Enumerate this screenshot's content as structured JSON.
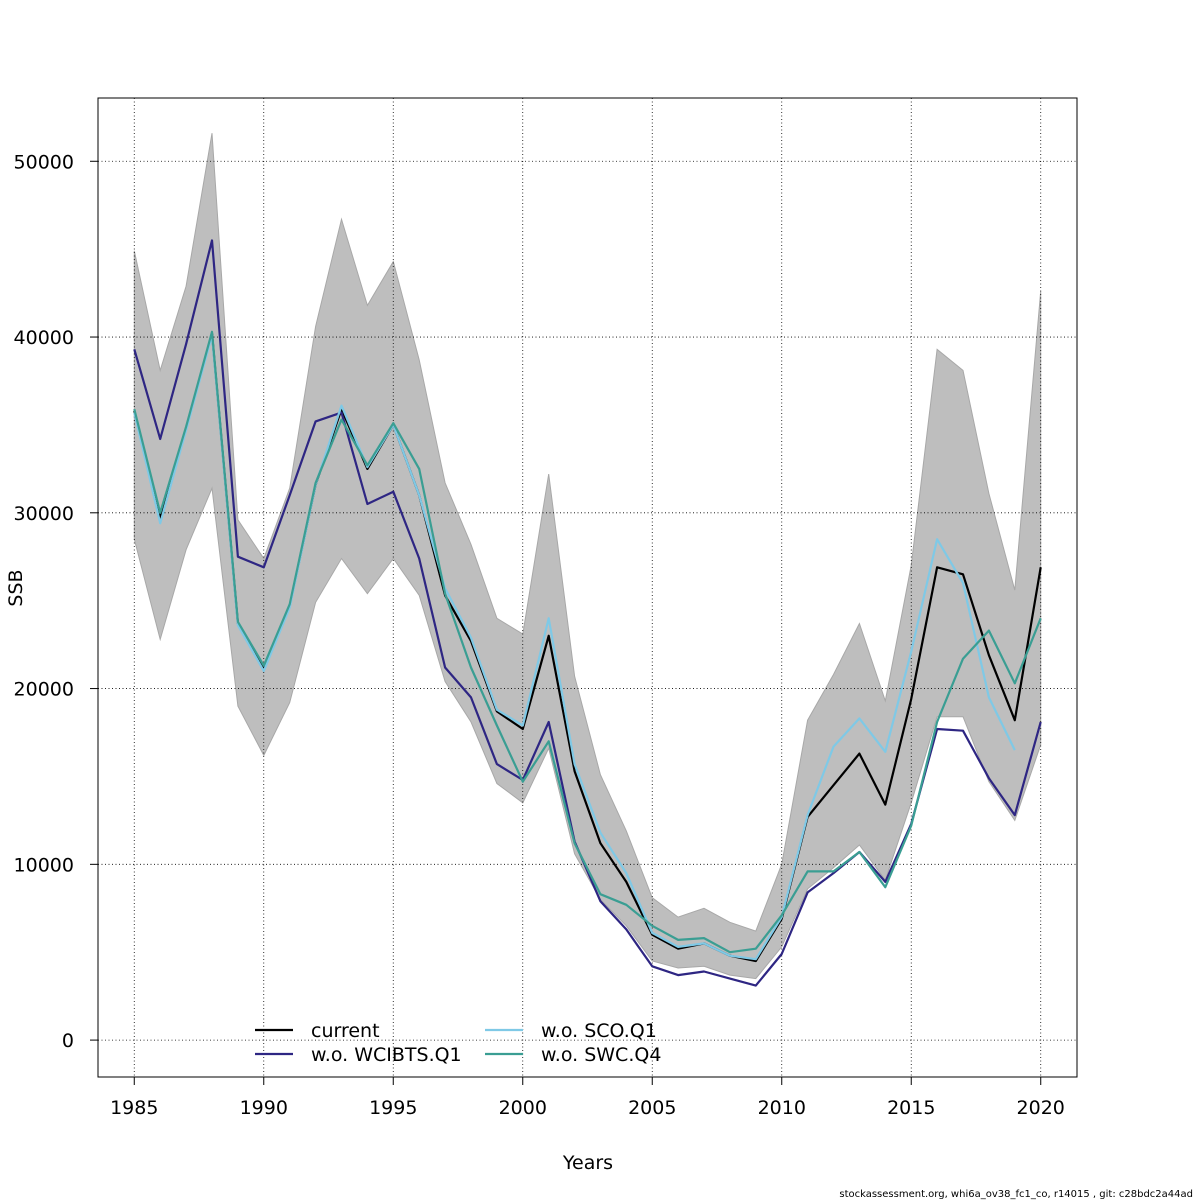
{
  "chart_data": {
    "type": "line",
    "xlabel": "Years",
    "ylabel": "SSB",
    "xlim": [
      1983.6,
      2021.4
    ],
    "ylim": [
      -2100,
      53600
    ],
    "x_ticks": [
      1985,
      1990,
      1995,
      2000,
      2005,
      2010,
      2015,
      2020
    ],
    "y_ticks": [
      0,
      10000,
      20000,
      30000,
      40000,
      50000
    ],
    "grid": true,
    "legend_position": "bottom-center",
    "x": [
      1985,
      1986,
      1987,
      1988,
      1989,
      1990,
      1991,
      1992,
      1993,
      1994,
      1995,
      1996,
      1997,
      1998,
      1999,
      2000,
      2001,
      2002,
      2003,
      2004,
      2005,
      2006,
      2007,
      2008,
      2009,
      2010,
      2011,
      2012,
      2013,
      2014,
      2015,
      2016,
      2017,
      2018,
      2019,
      2020
    ],
    "confidence_band": {
      "color": "#bebebe",
      "upper": [
        44900,
        38100,
        42900,
        51600,
        29600,
        27400,
        31400,
        40600,
        46700,
        41800,
        44300,
        38700,
        31700,
        28200,
        24000,
        23100,
        32200,
        20700,
        15100,
        11900,
        8100,
        7000,
        7500,
        6700,
        6200,
        10000,
        18200,
        20800,
        23700,
        19300,
        27000,
        39300,
        38100,
        31100,
        25600,
        42600
      ],
      "lower": [
        28500,
        22800,
        27900,
        31400,
        19000,
        16200,
        19200,
        24900,
        27400,
        25400,
        27400,
        25300,
        20400,
        18100,
        14600,
        13500,
        16600,
        10600,
        8000,
        6500,
        4500,
        4100,
        4200,
        3700,
        3500,
        5300,
        8600,
        9800,
        11100,
        9100,
        13500,
        18400,
        18400,
        14700,
        12500,
        16800
      ]
    },
    "series": [
      {
        "name": "current",
        "color": "#000000",
        "dash": "",
        "values": [
          35800,
          29700,
          34800,
          40200,
          23700,
          21200,
          24700,
          31600,
          35900,
          32500,
          35000,
          31000,
          25300,
          22700,
          18700,
          17700,
          23000,
          15300,
          11200,
          9000,
          6000,
          5200,
          5500,
          4800,
          4500,
          6900,
          12700,
          14500,
          16300,
          13400,
          19400,
          26900,
          26500,
          21900,
          18200,
          26900
        ]
      },
      {
        "name": "w.o. WCIBTS.Q1",
        "color": "#2e2683",
        "dash": "",
        "values": [
          39300,
          34200,
          39600,
          45500,
          27500,
          26900,
          31000,
          35200,
          35700,
          30500,
          31200,
          27400,
          21200,
          19500,
          15700,
          14800,
          18100,
          11300,
          7900,
          6300,
          4200,
          3700,
          3900,
          3500,
          3100,
          4900,
          8400,
          9500,
          10700,
          9000,
          12300,
          17700,
          17600,
          14900,
          12800,
          18100
        ]
      },
      {
        "name": "w.o. SCO.Q1",
        "color": "#7fc9e6",
        "dash": "",
        "values": [
          35700,
          29400,
          34700,
          40100,
          23600,
          21000,
          24600,
          31600,
          36100,
          32600,
          35000,
          31000,
          25700,
          22900,
          18800,
          17900,
          24000,
          15700,
          11800,
          9500,
          6100,
          5300,
          5500,
          4800,
          4600,
          7000,
          12800,
          16700,
          18300,
          16400,
          22100,
          28500,
          26000,
          19500,
          16500,
          null
        ]
      },
      {
        "name": "w.o. SWC.Q4",
        "color": "#3a9e93",
        "dash": "",
        "values": [
          35900,
          30000,
          34900,
          40300,
          23800,
          21300,
          24800,
          31700,
          35300,
          32700,
          35100,
          32500,
          25400,
          21200,
          17900,
          14700,
          17000,
          11200,
          8300,
          7700,
          6500,
          5700,
          5800,
          5000,
          5200,
          7100,
          9600,
          9600,
          10700,
          8700,
          12200,
          18100,
          21700,
          23300,
          20300,
          24000
        ]
      }
    ],
    "legend_entries": [
      {
        "label": "current",
        "color": "#000000",
        "dash": ""
      },
      {
        "label": "w.o. WCIBTS.Q1",
        "color": "#2e2683",
        "dash": ""
      },
      {
        "label": "w.o. SCO.Q1",
        "color": "#7fc9e6",
        "dash": ""
      },
      {
        "label": "w.o. SWC.Q4",
        "color": "#3a9e93",
        "dash": ""
      }
    ]
  },
  "footer": "stockassessment.org, whi6a_ov38_fc1_co, r14015 , git: c28bdc2a44ad"
}
